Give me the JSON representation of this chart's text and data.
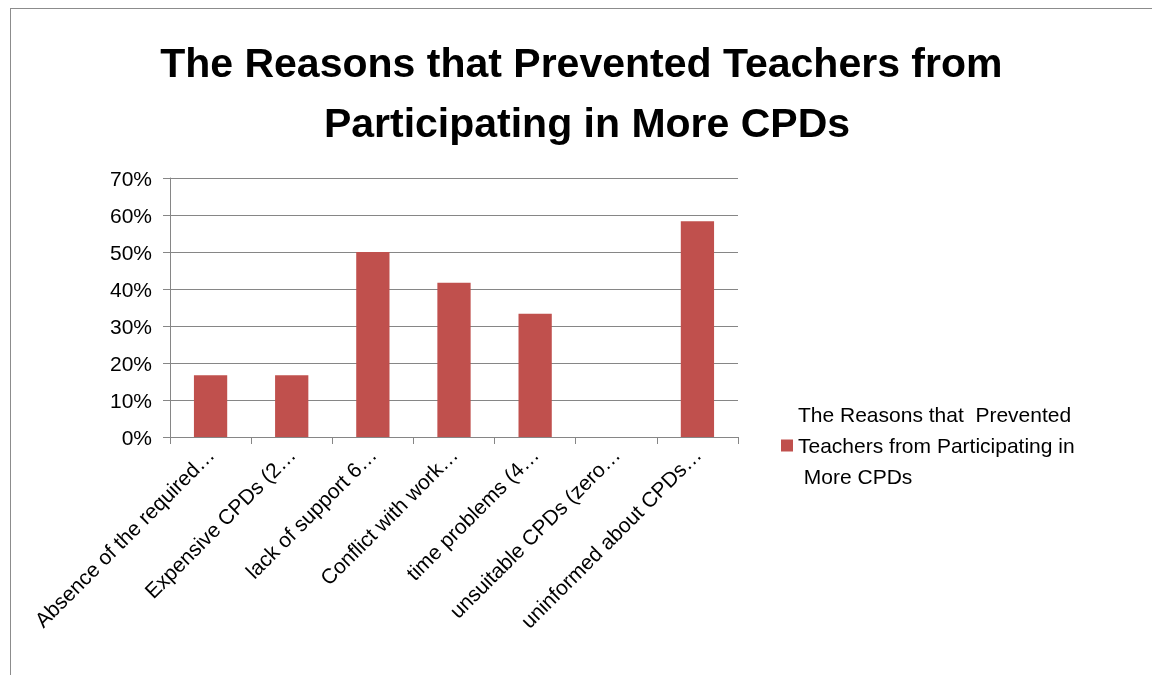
{
  "chart_data": {
    "type": "bar",
    "title": "The Reasons that Prevented Teachers from Participating in More CPDs",
    "categories": [
      "Absence of the required…",
      "Expensive CPDs (2…",
      "lack of support 6…",
      "Conflict with work…",
      "time problems (4…",
      "unsuitable CPDs (zero…",
      "uninformed about CPDs…"
    ],
    "series": [
      {
        "name": "The Reasons that  Prevented Teachers from Participating in More CPDs",
        "color": "#c0504d",
        "values": [
          16.7,
          16.7,
          50,
          41.7,
          33.3,
          0,
          58.3
        ]
      }
    ],
    "ylim": [
      0,
      70
    ],
    "yticks": [
      {
        "value": 0,
        "label": "0%"
      },
      {
        "value": 10,
        "label": "10%"
      },
      {
        "value": 20,
        "label": "20%"
      },
      {
        "value": 30,
        "label": "30%"
      },
      {
        "value": 40,
        "label": "40%"
      },
      {
        "value": 50,
        "label": "50%"
      },
      {
        "value": 60,
        "label": "60%"
      },
      {
        "value": 70,
        "label": "70%"
      }
    ],
    "grid": "y",
    "legend": "right"
  }
}
